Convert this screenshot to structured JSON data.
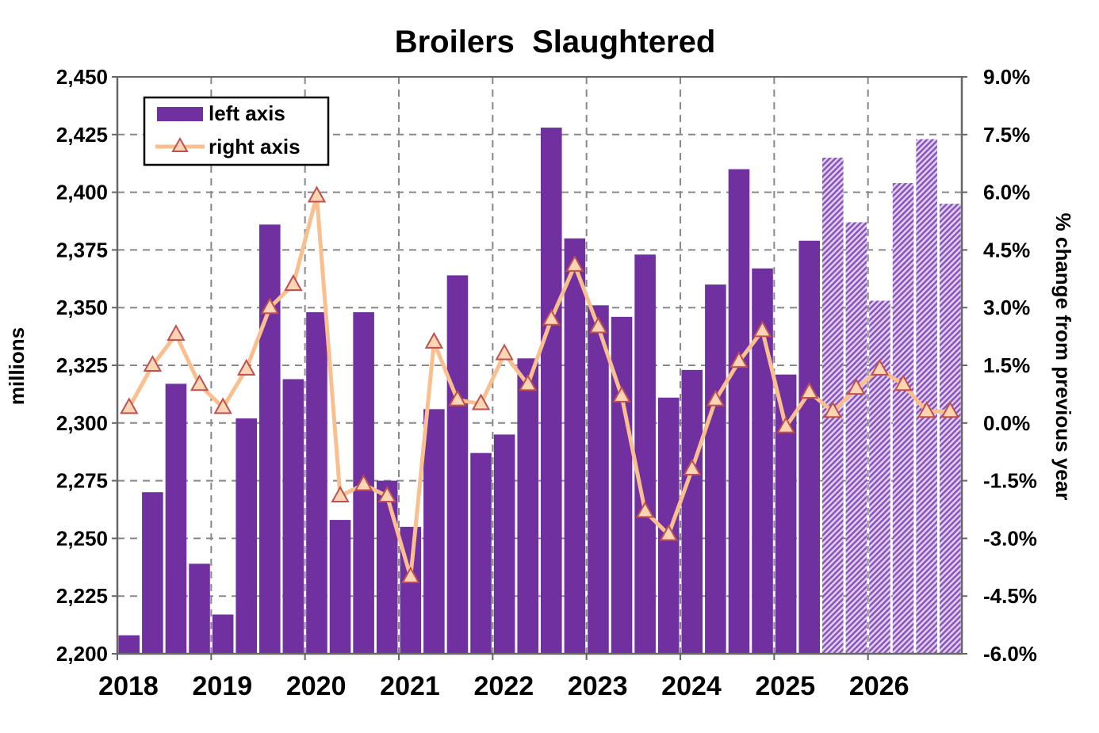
{
  "chart_data": {
    "type": "bar",
    "title": "Broilers  Slaughtered",
    "xlabel": "",
    "ylabel": "millions",
    "y2label": "% change from previous year",
    "ylim": [
      2200,
      2450
    ],
    "y2lim": [
      -6.0,
      9.0
    ],
    "yticks": [
      "2,200",
      "2,225",
      "2,250",
      "2,275",
      "2,300",
      "2,325",
      "2,350",
      "2,375",
      "2,400",
      "2,425",
      "2,450"
    ],
    "y2ticks": [
      "-6.0%",
      "-4.5%",
      "-3.0%",
      "-1.5%",
      "0.0%",
      "1.5%",
      "3.0%",
      "4.5%",
      "6.0%",
      "7.5%",
      "9.0%"
    ],
    "xticks": [
      "2018",
      "2019",
      "2020",
      "2021",
      "2022",
      "2023",
      "2024",
      "2025",
      "2026"
    ],
    "grid": true,
    "legend_position": "top-left",
    "colors": {
      "bar": "#7030a0",
      "forecast_bar": "#9b6cc8",
      "line": "#f9bf8f",
      "marker_edge": "#c0504d",
      "marker_fill": "#fcd5b4"
    },
    "forecast_start_index": 30,
    "series": [
      {
        "name": "left axis",
        "axis": "left",
        "type": "bar",
        "values": [
          2208,
          2270,
          2317,
          2239,
          2217,
          2302,
          2386,
          2319,
          2348,
          2258,
          2348,
          2275,
          2255,
          2306,
          2364,
          2287,
          2295,
          2328,
          2428,
          2380,
          2351,
          2346,
          2373,
          2311,
          2323,
          2360,
          2410,
          2367,
          2321,
          2379,
          2415,
          2387,
          2353,
          2404,
          2423,
          2395
        ]
      },
      {
        "name": "right axis",
        "axis": "right",
        "type": "line",
        "values": [
          0.4,
          1.5,
          2.3,
          1.0,
          0.4,
          1.4,
          3.0,
          3.6,
          5.9,
          -1.9,
          -1.6,
          -1.9,
          -4.0,
          2.1,
          0.6,
          0.5,
          1.8,
          1.0,
          2.7,
          4.1,
          2.5,
          0.7,
          -2.3,
          -2.9,
          -1.2,
          0.6,
          1.6,
          2.4,
          -0.1,
          0.8,
          0.3,
          0.9,
          1.4,
          1.0,
          0.3,
          0.3
        ]
      }
    ]
  }
}
